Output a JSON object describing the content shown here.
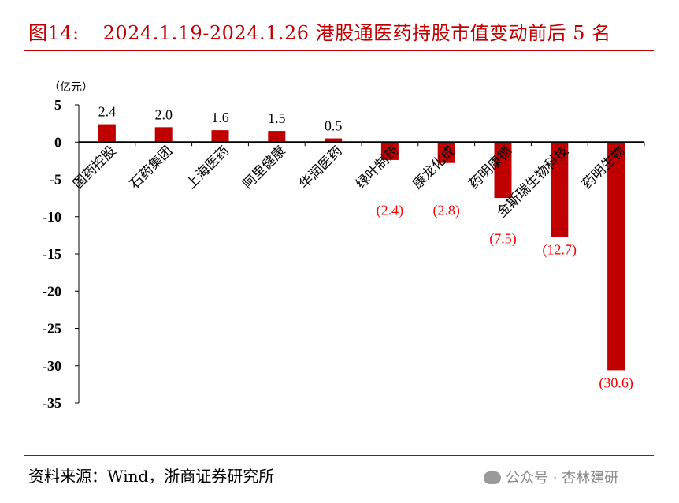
{
  "title": {
    "figure_no": "图14:",
    "text": "2024.1.19-2024.1.26 港股通医药持股市值变动前后 5 名"
  },
  "source": "资料来源：Wind，浙商证券研究所",
  "watermark": "公众号 · 杏林建研",
  "chart_data": {
    "type": "bar",
    "unit_label": "（亿元）",
    "categories": [
      "国药控股",
      "石药集团",
      "上海医药",
      "阿里健康",
      "华润医药",
      "绿叶制药",
      "康龙化成",
      "药明康德",
      "金斯瑞生物科技",
      "药明生物"
    ],
    "values": [
      2.4,
      2.0,
      1.6,
      1.5,
      0.5,
      -2.4,
      -2.8,
      -7.5,
      -12.7,
      -30.6
    ],
    "data_labels": [
      "2.4",
      "2.0",
      "1.6",
      "1.5",
      "0.5",
      "(2.4)",
      "(2.8)",
      "(7.5)",
      "(12.7)",
      "(30.6)"
    ],
    "ylim": [
      -35,
      5
    ],
    "yticks": [
      5,
      0,
      -5,
      -10,
      -15,
      -20,
      -25,
      -30,
      -35
    ],
    "grid": false,
    "bar_color": "#c00000",
    "positive_label_color": "#000000",
    "negative_label_color": "#ff0000"
  }
}
